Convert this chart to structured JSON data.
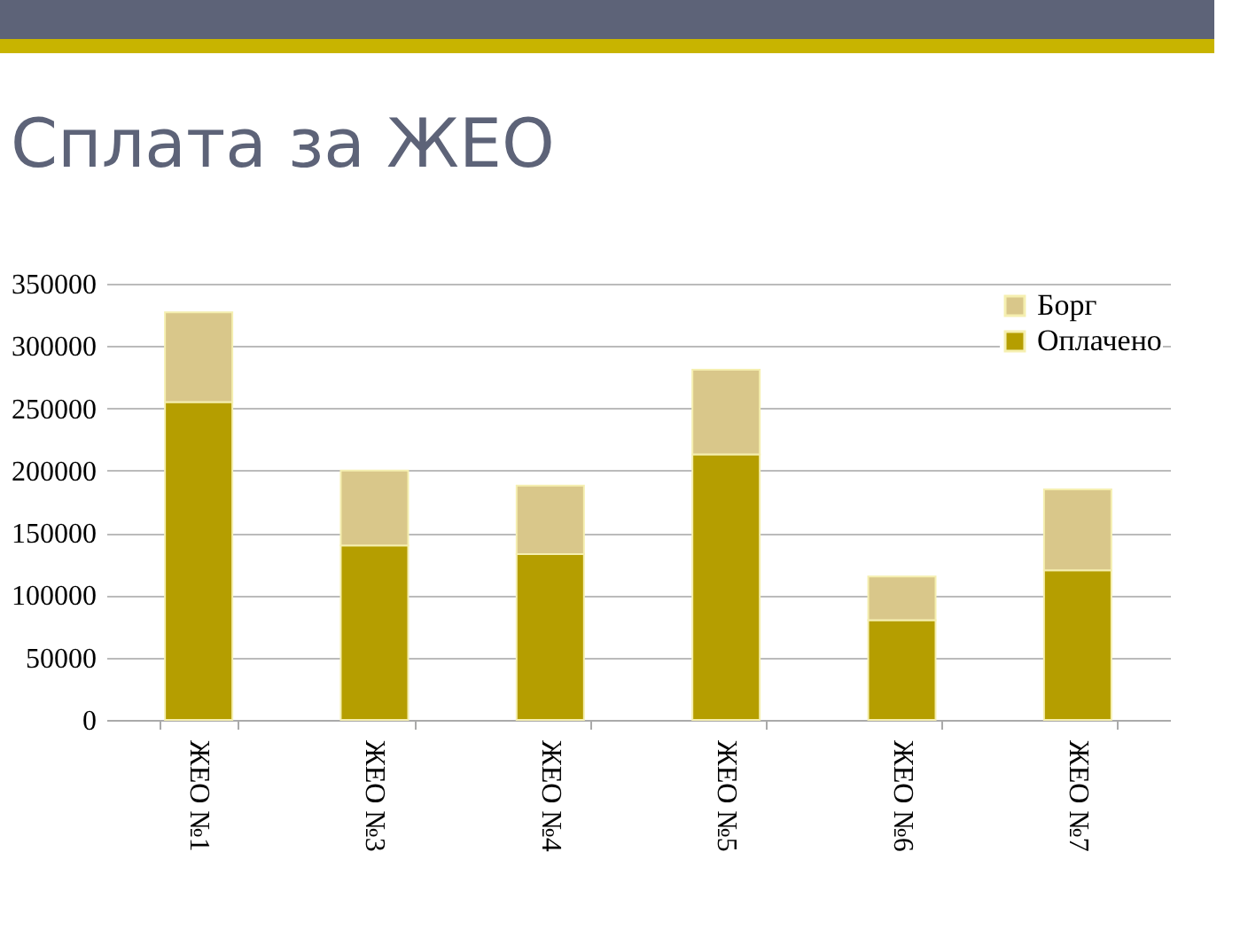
{
  "chart_data": {
    "type": "bar",
    "title": "Сплата за ЖЕО",
    "categories": [
      "ЖЕО №1",
      "ЖЕО №3",
      "ЖЕО №4",
      "ЖЕО №5",
      "ЖЕО №6",
      "ЖЕО №7"
    ],
    "series": [
      {
        "name": "Оплачено",
        "color": "#b59e00",
        "values": [
          255000,
          140000,
          133000,
          213000,
          80000,
          120000
        ]
      },
      {
        "name": "Борг",
        "color": "#d9c78a",
        "values": [
          72000,
          60000,
          55000,
          68000,
          35000,
          65000
        ]
      }
    ],
    "stacked": true,
    "ylim": [
      0,
      350000
    ],
    "yticks": [
      0,
      50000,
      100000,
      150000,
      200000,
      250000,
      300000,
      350000
    ],
    "grid": "y",
    "legend": "top right"
  }
}
